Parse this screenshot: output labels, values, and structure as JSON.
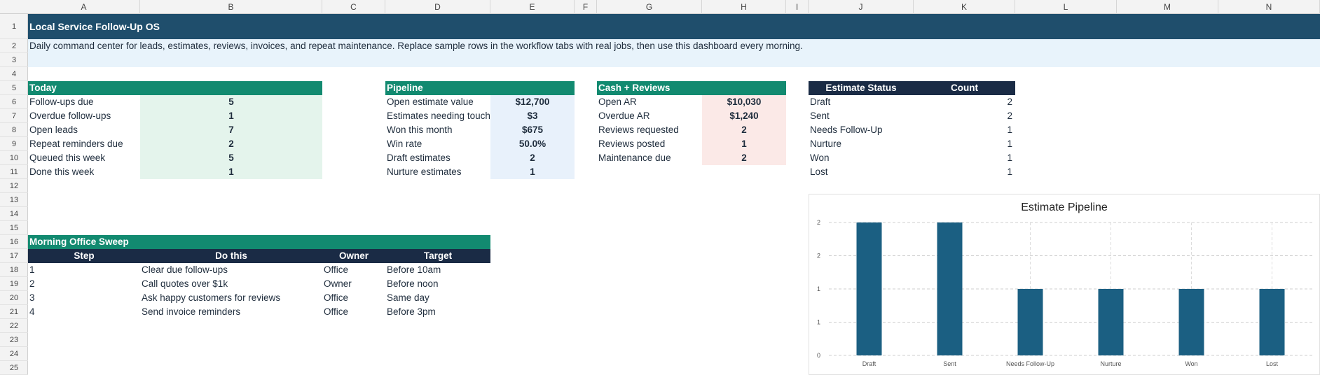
{
  "columns": [
    "A",
    "B",
    "C",
    "D",
    "E",
    "F",
    "G",
    "H",
    "I",
    "J",
    "K",
    "L",
    "M",
    "N"
  ],
  "rows": [
    "1",
    "2",
    "3",
    "4",
    "5",
    "6",
    "7",
    "8",
    "9",
    "10",
    "11",
    "12",
    "13",
    "14",
    "15",
    "16",
    "17",
    "18",
    "19",
    "20",
    "21",
    "22",
    "23",
    "24",
    "25"
  ],
  "title": "Local Service Follow-Up OS",
  "subtitle": "Daily command center for leads, estimates, reviews, invoices, and repeat maintenance. Replace sample rows in the workflow tabs with real jobs, then use this dashboard every morning.",
  "today": {
    "header": "Today",
    "items": [
      {
        "label": "Follow-ups due",
        "value": "5"
      },
      {
        "label": "Overdue follow-ups",
        "value": "1"
      },
      {
        "label": "Open leads",
        "value": "7"
      },
      {
        "label": "Repeat reminders due",
        "value": "2"
      },
      {
        "label": "Queued this week",
        "value": "5"
      },
      {
        "label": "Done this week",
        "value": "1"
      }
    ]
  },
  "pipeline": {
    "header": "Pipeline",
    "items": [
      {
        "label": "Open estimate value",
        "value": "$12,700"
      },
      {
        "label": "Estimates needing touch",
        "value": "$3"
      },
      {
        "label": "Won this month",
        "value": "$675"
      },
      {
        "label": "Win rate",
        "value": "50.0%"
      },
      {
        "label": "Draft estimates",
        "value": "2"
      },
      {
        "label": "Nurture estimates",
        "value": "1"
      }
    ]
  },
  "cash_reviews": {
    "header": "Cash + Reviews",
    "items": [
      {
        "label": "Open AR",
        "value": "$10,030"
      },
      {
        "label": "Overdue AR",
        "value": "$1,240"
      },
      {
        "label": "Reviews requested",
        "value": "2"
      },
      {
        "label": "Reviews posted",
        "value": "1"
      },
      {
        "label": "Maintenance due",
        "value": "2"
      }
    ]
  },
  "estimate_status": {
    "header_status": "Estimate Status",
    "header_count": "Count",
    "items": [
      {
        "status": "Draft",
        "count": "2"
      },
      {
        "status": "Sent",
        "count": "2"
      },
      {
        "status": "Needs Follow-Up",
        "count": "1"
      },
      {
        "status": "Nurture",
        "count": "1"
      },
      {
        "status": "Won",
        "count": "1"
      },
      {
        "status": "Lost",
        "count": "1"
      }
    ]
  },
  "sweep": {
    "header": "Morning Office Sweep",
    "col_step": "Step",
    "col_do": "Do this",
    "col_owner": "Owner",
    "col_target": "Target",
    "items": [
      {
        "step": "1",
        "do": "Clear due follow-ups",
        "owner": "Office",
        "target": "Before 10am"
      },
      {
        "step": "2",
        "do": "Call quotes over $1k",
        "owner": "Owner",
        "target": "Before noon"
      },
      {
        "step": "3",
        "do": "Ask happy customers for reviews",
        "owner": "Office",
        "target": "Same day"
      },
      {
        "step": "4",
        "do": "Send invoice reminders",
        "owner": "Office",
        "target": "Before 3pm"
      }
    ]
  },
  "chart_data": {
    "type": "bar",
    "title": "Estimate Pipeline",
    "categories": [
      "Draft",
      "Sent",
      "Needs Follow-Up",
      "Nurture",
      "Won",
      "Lost"
    ],
    "values": [
      2,
      2,
      1,
      1,
      1,
      1
    ],
    "ylim": [
      0,
      2
    ],
    "y_ticks": [
      0,
      0.5,
      1,
      1.5,
      2
    ],
    "y_tick_labels": [
      "0",
      "1",
      "1",
      "2",
      "2"
    ],
    "grid": true,
    "bar_color": "#1b5f82"
  }
}
